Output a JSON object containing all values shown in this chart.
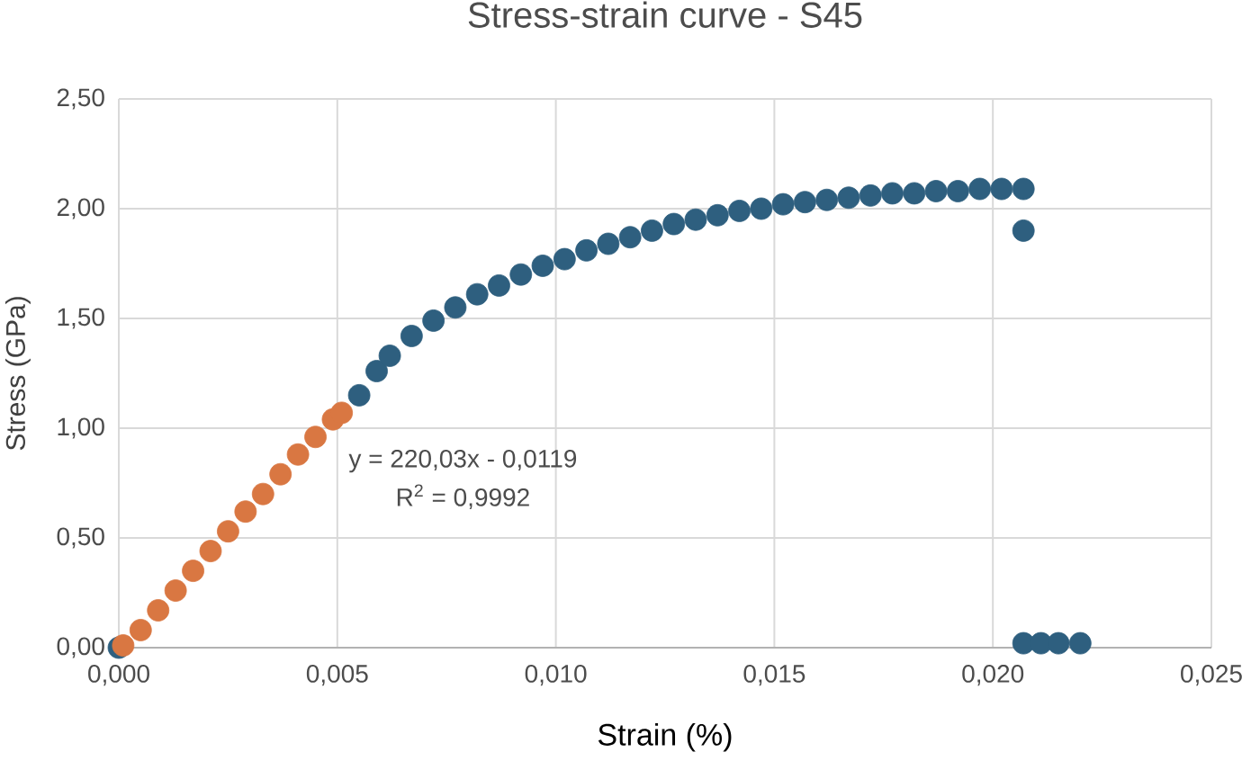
{
  "chart_data": {
    "type": "scatter",
    "title": "Stress-strain curve - S45",
    "xlabel": "Strain (%)",
    "ylabel": "Stress (GPa)",
    "xlim": [
      0,
      0.025
    ],
    "ylim": [
      0,
      2.5
    ],
    "xticks": [
      {
        "value": 0,
        "label": "0,000"
      },
      {
        "value": 0.005,
        "label": "0,005"
      },
      {
        "value": 0.01,
        "label": "0,010"
      },
      {
        "value": 0.015,
        "label": "0,015"
      },
      {
        "value": 0.02,
        "label": "0,020"
      },
      {
        "value": 0.025,
        "label": "0,025"
      }
    ],
    "yticks": [
      {
        "value": 0,
        "label": "0,00"
      },
      {
        "value": 0.5,
        "label": "0,50"
      },
      {
        "value": 1,
        "label": "1,00"
      },
      {
        "value": 1.5,
        "label": "1,50"
      },
      {
        "value": 2,
        "label": "2,00"
      },
      {
        "value": 2.5,
        "label": "2,50"
      }
    ],
    "grid": true,
    "marker": "circle",
    "series": [
      {
        "color": "#2e5f7f",
        "x": [
          0,
          0.0055,
          0.0059,
          0.0062,
          0.0067,
          0.0072,
          0.0077,
          0.0082,
          0.0087,
          0.0092,
          0.0097,
          0.0102,
          0.0107,
          0.0112,
          0.0117,
          0.0122,
          0.0127,
          0.0132,
          0.0137,
          0.0142,
          0.0147,
          0.0152,
          0.0157,
          0.0162,
          0.0167,
          0.0172,
          0.0177,
          0.0182,
          0.0187,
          0.0192,
          0.0197,
          0.0202,
          0.0207,
          0.0207,
          0.0207,
          0.0211,
          0.0215,
          0.022
        ],
        "values": [
          0,
          1.15,
          1.26,
          1.33,
          1.42,
          1.49,
          1.55,
          1.61,
          1.65,
          1.7,
          1.74,
          1.77,
          1.81,
          1.84,
          1.87,
          1.9,
          1.93,
          1.95,
          1.97,
          1.99,
          2.0,
          2.02,
          2.03,
          2.04,
          2.05,
          2.06,
          2.07,
          2.07,
          2.08,
          2.08,
          2.09,
          2.09,
          2.09,
          1.9,
          0.02,
          0.02,
          0.02,
          0.02
        ]
      },
      {
        "color": "#d97742",
        "x": [
          0.0001,
          0.0005,
          0.0009,
          0.0013,
          0.0017,
          0.0021,
          0.0025,
          0.0029,
          0.0033,
          0.0037,
          0.0041,
          0.0045,
          0.0049,
          0.0051
        ],
        "values": [
          0.01,
          0.08,
          0.17,
          0.26,
          0.35,
          0.44,
          0.53,
          0.62,
          0.7,
          0.79,
          0.88,
          0.96,
          1.04,
          1.07
        ]
      }
    ],
    "annotations": [
      "y = 220,03x - 0,0119",
      "R$^{2}$ = 0,9992"
    ]
  }
}
